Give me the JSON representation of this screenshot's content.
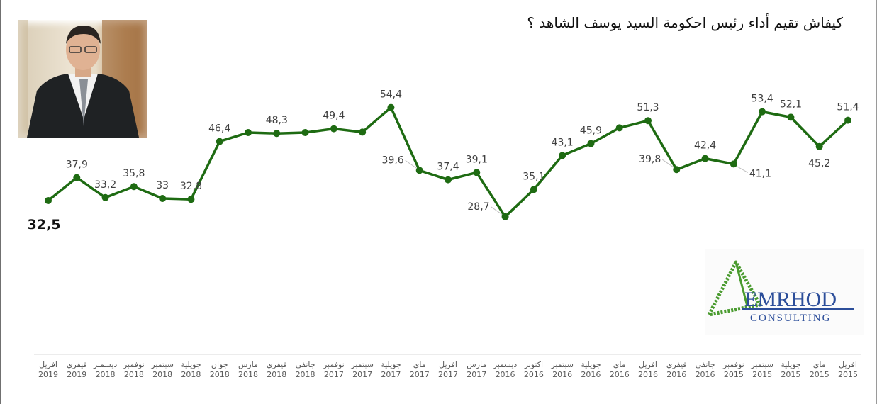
{
  "title": "كيفاش تقيم أداء رئيس احكومة السيد يوسف الشاهد ؟",
  "logo": {
    "name": "EMRHOD",
    "sub": "CONSULTING"
  },
  "colors": {
    "line": "#1e6b12",
    "axis": "#d9d9d9",
    "tick": "#595959",
    "logo_green": "#4a9b2f",
    "logo_blue": "#2c4e9a"
  },
  "chart_data": {
    "type": "line",
    "title": "كيفاش تقيم أداء رئيس احكومة السيد يوسف الشاهد ؟",
    "series_name": "",
    "categories": [
      [
        "افريل",
        "2019"
      ],
      [
        "فيفري",
        "2019"
      ],
      [
        "ديسمبر",
        "2018"
      ],
      [
        "نوفمبر",
        "2018"
      ],
      [
        "سبتمبر",
        "2018"
      ],
      [
        "جويلية",
        "2018"
      ],
      [
        "جوان",
        "2018"
      ],
      [
        "مارس",
        "2018"
      ],
      [
        "فيفري",
        "2018"
      ],
      [
        "جانفي",
        "2018"
      ],
      [
        "نوفمبر",
        "2017"
      ],
      [
        "سبتمبر",
        "2017"
      ],
      [
        "جويلية",
        "2017"
      ],
      [
        "ماي",
        "2017"
      ],
      [
        "افريل",
        "2017"
      ],
      [
        "مارس",
        "2017"
      ],
      [
        "ديسمبر",
        "2016"
      ],
      [
        "اكتوبر",
        "2016"
      ],
      [
        "سبتمبر",
        "2016"
      ],
      [
        "جويلية",
        "2016"
      ],
      [
        "ماي",
        "2016"
      ],
      [
        "افريل",
        "2016"
      ],
      [
        "فيفري",
        "2016"
      ],
      [
        "جانفي",
        "2016"
      ],
      [
        "نوفمبر",
        "2015"
      ],
      [
        "سبتمبر",
        "2015"
      ],
      [
        "جويلية",
        "2015"
      ],
      [
        "ماي",
        "2015"
      ],
      [
        "افريل",
        "2015"
      ]
    ],
    "values": [
      32.5,
      37.9,
      33.2,
      35.8,
      33,
      32.8,
      46.4,
      48.5,
      48.3,
      48.5,
      49.4,
      48.6,
      54.4,
      39.6,
      37.4,
      39.1,
      28.7,
      35.1,
      43.1,
      45.9,
      49.6,
      51.3,
      39.8,
      42.4,
      41.1,
      53.4,
      52.1,
      45.2,
      51.4
    ],
    "value_labels": [
      "32,5",
      "37,9",
      "33,2",
      "35,8",
      "33",
      "32,8",
      "46,4",
      null,
      "48,3",
      null,
      "49,4",
      null,
      "54,4",
      "39,6",
      "37,4",
      "39,1",
      "28,7",
      "35,1",
      "43,1",
      "45,9",
      null,
      "51,3",
      "39,8",
      "42,4",
      "41,1",
      "53,4",
      "52,1",
      "45,2",
      "51,4"
    ],
    "label_positions": [
      "below",
      "above",
      "above",
      "above",
      "above",
      "above",
      "above",
      null,
      "above",
      null,
      "above",
      null,
      "above",
      "left",
      "above",
      "above",
      "left",
      "above",
      "above",
      "above",
      null,
      "above",
      "left",
      "above",
      "right",
      "above",
      "above",
      "below",
      "above"
    ],
    "ylim": [
      20,
      60
    ],
    "xlabel": "",
    "ylabel": "",
    "grid": false,
    "legend": "none"
  }
}
